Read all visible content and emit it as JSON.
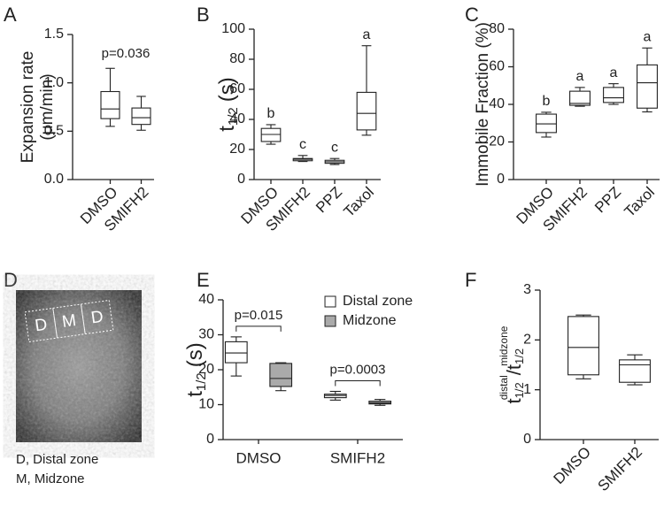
{
  "chart_data": [
    {
      "type": "box",
      "panel": "A",
      "y_label": [
        "Expansion rate",
        "(μm/min)"
      ],
      "categories": [
        "DMSO",
        "SMIFH2"
      ],
      "series": [
        {
          "color": "#ffffff",
          "min": [
            0.55,
            0.51
          ],
          "q1": [
            0.63,
            0.57
          ],
          "median": [
            0.73,
            0.64
          ],
          "q3": [
            0.91,
            0.74
          ],
          "max": [
            1.15,
            0.86
          ]
        }
      ],
      "p_value": "p=0.036",
      "ylim": [
        0,
        1.5
      ],
      "yticks": [
        {
          "value": 0,
          "label": "0.0"
        },
        0.5,
        {
          "value": 1,
          "label": "1.0"
        },
        1.5
      ]
    },
    {
      "type": "box",
      "panel": "B",
      "y_label": {
        "text": "t",
        "sub": "1/2",
        "unit": "(s)"
      },
      "categories": [
        "DMSO",
        "SMIFH2",
        "PPZ",
        "Taxol"
      ],
      "series": [
        {
          "color": "#ffffff",
          "min": [
            23.5,
            12,
            10,
            29.5
          ],
          "q1": [
            25.3,
            12.5,
            10.8,
            33
          ],
          "median": [
            30,
            13.5,
            11.8,
            44
          ],
          "q3": [
            34,
            14,
            12.8,
            58
          ],
          "max": [
            36.5,
            16,
            14,
            89
          ]
        }
      ],
      "letters": [
        "b",
        "c",
        "c",
        "a"
      ],
      "ylim": [
        0,
        100
      ],
      "yticks": [
        0,
        20,
        40,
        60,
        80,
        100
      ]
    },
    {
      "type": "box",
      "panel": "C",
      "y_label": "Immobile Fraction (%)",
      "categories": [
        "DMSO",
        "SMIFH2",
        "PPZ",
        "Taxol"
      ],
      "series": [
        {
          "color": "#ffffff",
          "min": [
            22.6,
            39,
            40,
            36
          ],
          "q1": [
            25,
            39.5,
            41,
            38
          ],
          "median": [
            29.6,
            40.5,
            43.5,
            51.5
          ],
          "q3": [
            34.8,
            47,
            49,
            61
          ],
          "max": [
            35.8,
            49,
            51,
            70
          ]
        }
      ],
      "letters": [
        "b",
        "a",
        "a",
        "a"
      ],
      "ylim": [
        0,
        80
      ],
      "yticks": [
        0,
        20,
        40,
        60,
        80
      ]
    },
    {
      "type": "box",
      "panel": "E",
      "y_label": {
        "text": "t",
        "sub": "1/2",
        "unit": "(s)"
      },
      "categories": [
        "DMSO",
        "SMIFH2"
      ],
      "series": [
        {
          "name": "Distal zone",
          "color": "#ffffff",
          "min": [
            18.2,
            11.3
          ],
          "q1": [
            22,
            12
          ],
          "median": [
            24.8,
            12.6
          ],
          "q3": [
            28,
            13
          ],
          "max": [
            29.4,
            13.8
          ]
        },
        {
          "name": "Midzone",
          "color": "#aaaaaa",
          "min": [
            14,
            9.8
          ],
          "q1": [
            15.2,
            10.2
          ],
          "median": [
            17.5,
            10.5
          ],
          "q3": [
            21.8,
            11
          ],
          "max": [
            22,
            11.5
          ]
        }
      ],
      "p_values": [
        "p=0.015",
        "p=0.0003"
      ],
      "ylim": [
        0,
        40
      ],
      "yticks": [
        0,
        10,
        20,
        30,
        40
      ]
    },
    {
      "type": "box",
      "panel": "F",
      "y_label": {
        "num": {
          "text": "t",
          "sub": "1/2",
          "sup": "distal"
        },
        "sep": "/",
        "den": {
          "text": "t",
          "sub": "1/2",
          "sup": "midzone"
        }
      },
      "categories": [
        "DMSO",
        "SMIFH2"
      ],
      "series": [
        {
          "color": "#ffffff",
          "min": [
            1.22,
            1.1
          ],
          "q1": [
            1.3,
            1.15
          ],
          "median": [
            1.85,
            1.5
          ],
          "q3": [
            2.47,
            1.6
          ],
          "max": [
            2.5,
            1.7
          ]
        }
      ],
      "ylim": [
        0,
        3
      ],
      "yticks": [
        0,
        1,
        2,
        3
      ]
    }
  ],
  "panel_d": {
    "label": "D",
    "regions": [
      "D",
      "M",
      "D"
    ],
    "caption": [
      "D, Distal zone",
      "M, Midzone"
    ]
  }
}
